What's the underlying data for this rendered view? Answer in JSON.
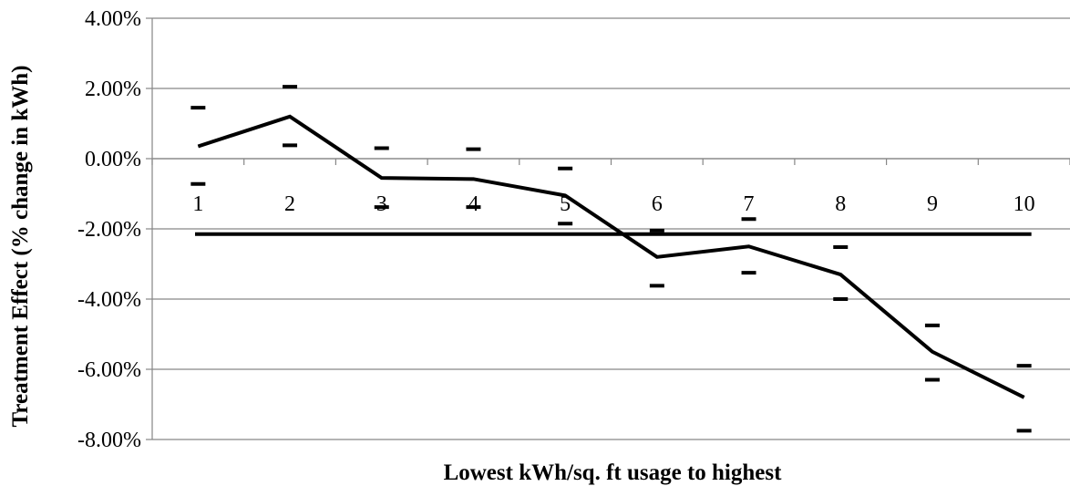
{
  "chart_data": {
    "type": "line",
    "title": "",
    "xlabel": "Lowest kWh/sq. ft usage to highest",
    "ylabel": "Treatment Effect (% change in kWh)",
    "categories": [
      "1",
      "2",
      "3",
      "4",
      "5",
      "6",
      "7",
      "8",
      "9",
      "10"
    ],
    "ylim": [
      -0.08,
      0.04
    ],
    "y_ticks": [
      0.04,
      0.02,
      0.0,
      -0.02,
      -0.04,
      -0.06,
      -0.08
    ],
    "y_tick_labels": [
      "4.00%",
      "2.00%",
      "0.00%",
      "-2.00%",
      "-4.00%",
      "-6.00%",
      "-8.00%"
    ],
    "gridlines": true,
    "legend": "none",
    "series": [
      {
        "values": [
          0.0035,
          0.012,
          -0.0055,
          -0.0058,
          -0.0105,
          -0.028,
          -0.025,
          -0.033,
          -0.055,
          -0.068
        ]
      }
    ],
    "ci_upper": [
      0.0145,
      0.0205,
      0.003,
      0.0027,
      -0.0028,
      -0.0205,
      -0.0172,
      -0.0252,
      -0.0475,
      -0.059
    ],
    "ci_lower": [
      -0.0072,
      0.0038,
      -0.0138,
      -0.0138,
      -0.0185,
      -0.0362,
      -0.0325,
      -0.04,
      -0.063,
      -0.0775
    ],
    "reference_line": -0.0215,
    "colors": {
      "line": "#000000",
      "grid": "#868686",
      "axis": "#868686",
      "background": "#ffffff"
    }
  }
}
